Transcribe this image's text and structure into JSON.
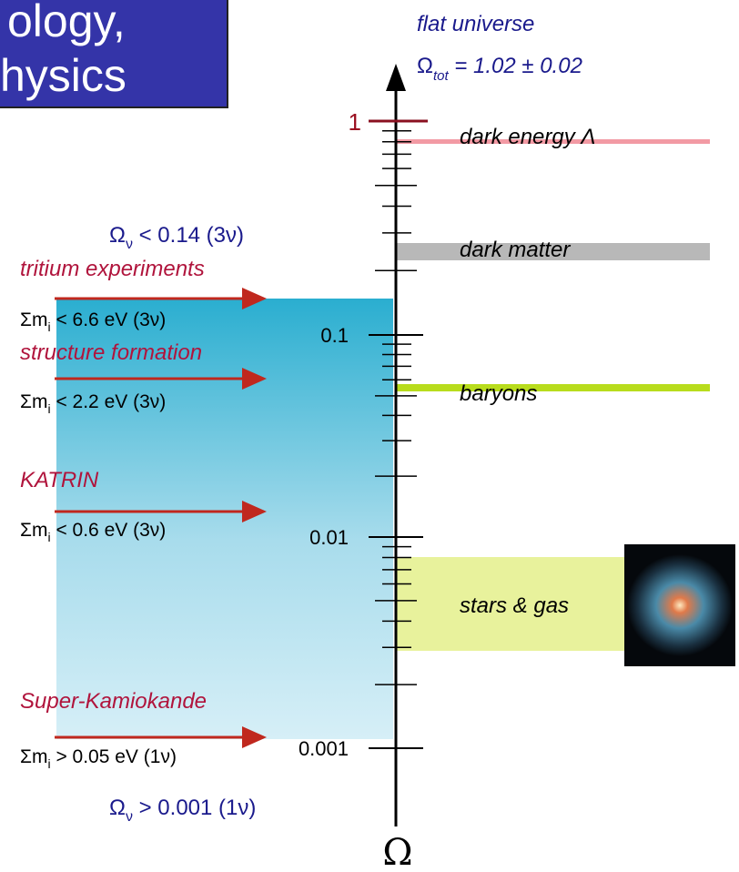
{
  "title": {
    "line1": "ology,",
    "line2": "hysics"
  },
  "header": {
    "caption": "flat universe",
    "total": {
      "symbol": "Ω",
      "sub": "tot",
      "rest": " = 1.02 ± 0.02"
    }
  },
  "axis": {
    "ticks": [
      "1",
      "0.1",
      "0.01",
      "0.001"
    ],
    "symbol": "Ω"
  },
  "components": [
    "dark energy Λ",
    "dark matter",
    "baryons",
    "stars & gas"
  ],
  "bounds": {
    "upper": {
      "symbol": "Ω",
      "sub": "ν",
      "rest": " < 0.14   (3ν)"
    },
    "lower": {
      "symbol": "Ω",
      "sub": "ν",
      "rest": " > 0.001   (1ν)"
    }
  },
  "experiments": [
    {
      "name": "tritium experiments",
      "pre": "Σm",
      "sub": "i",
      "rest": " < 6.6 eV (3ν)"
    },
    {
      "name": "structure formation",
      "pre": "Σm",
      "sub": "i",
      "rest": " < 2.2 eV (3ν)"
    },
    {
      "name": "KATRIN",
      "pre": "Σm",
      "sub": "i",
      "rest": " < 0.6 eV (3ν)"
    },
    {
      "name": "Super-Kamiokande",
      "pre": "Σm",
      "sub": "i",
      "rest": " > 0.05 eV (1ν)"
    }
  ]
}
